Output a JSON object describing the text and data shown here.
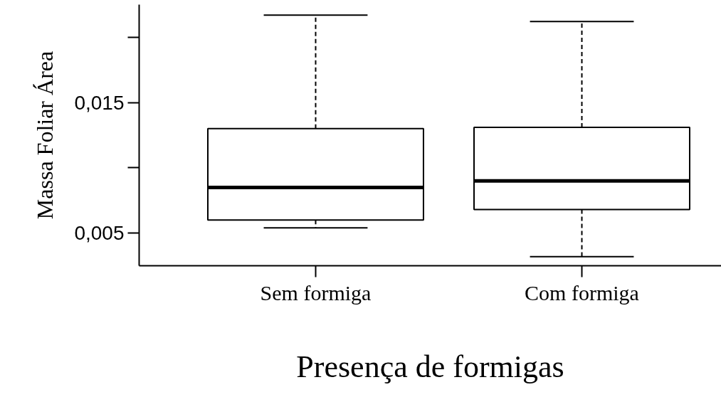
{
  "chart_data": {
    "type": "box",
    "xlabel": "Presença de formigas",
    "ylabel": "Massa Foliar Área",
    "categories": [
      "Sem formiga",
      "Com formiga"
    ],
    "boxes": [
      {
        "low": 0.0054,
        "q1": 0.006,
        "median": 0.0085,
        "q3": 0.013,
        "high": 0.0217
      },
      {
        "low": 0.0032,
        "q1": 0.0068,
        "median": 0.009,
        "q3": 0.0131,
        "high": 0.0212
      }
    ],
    "ylim": [
      0.0025,
      0.0225
    ],
    "yticks": [
      {
        "value": 0.005,
        "label": "0,005"
      },
      {
        "value": 0.01,
        "label": null
      },
      {
        "value": 0.015,
        "label": "0,015"
      },
      {
        "value": 0.02,
        "label": null
      }
    ]
  }
}
